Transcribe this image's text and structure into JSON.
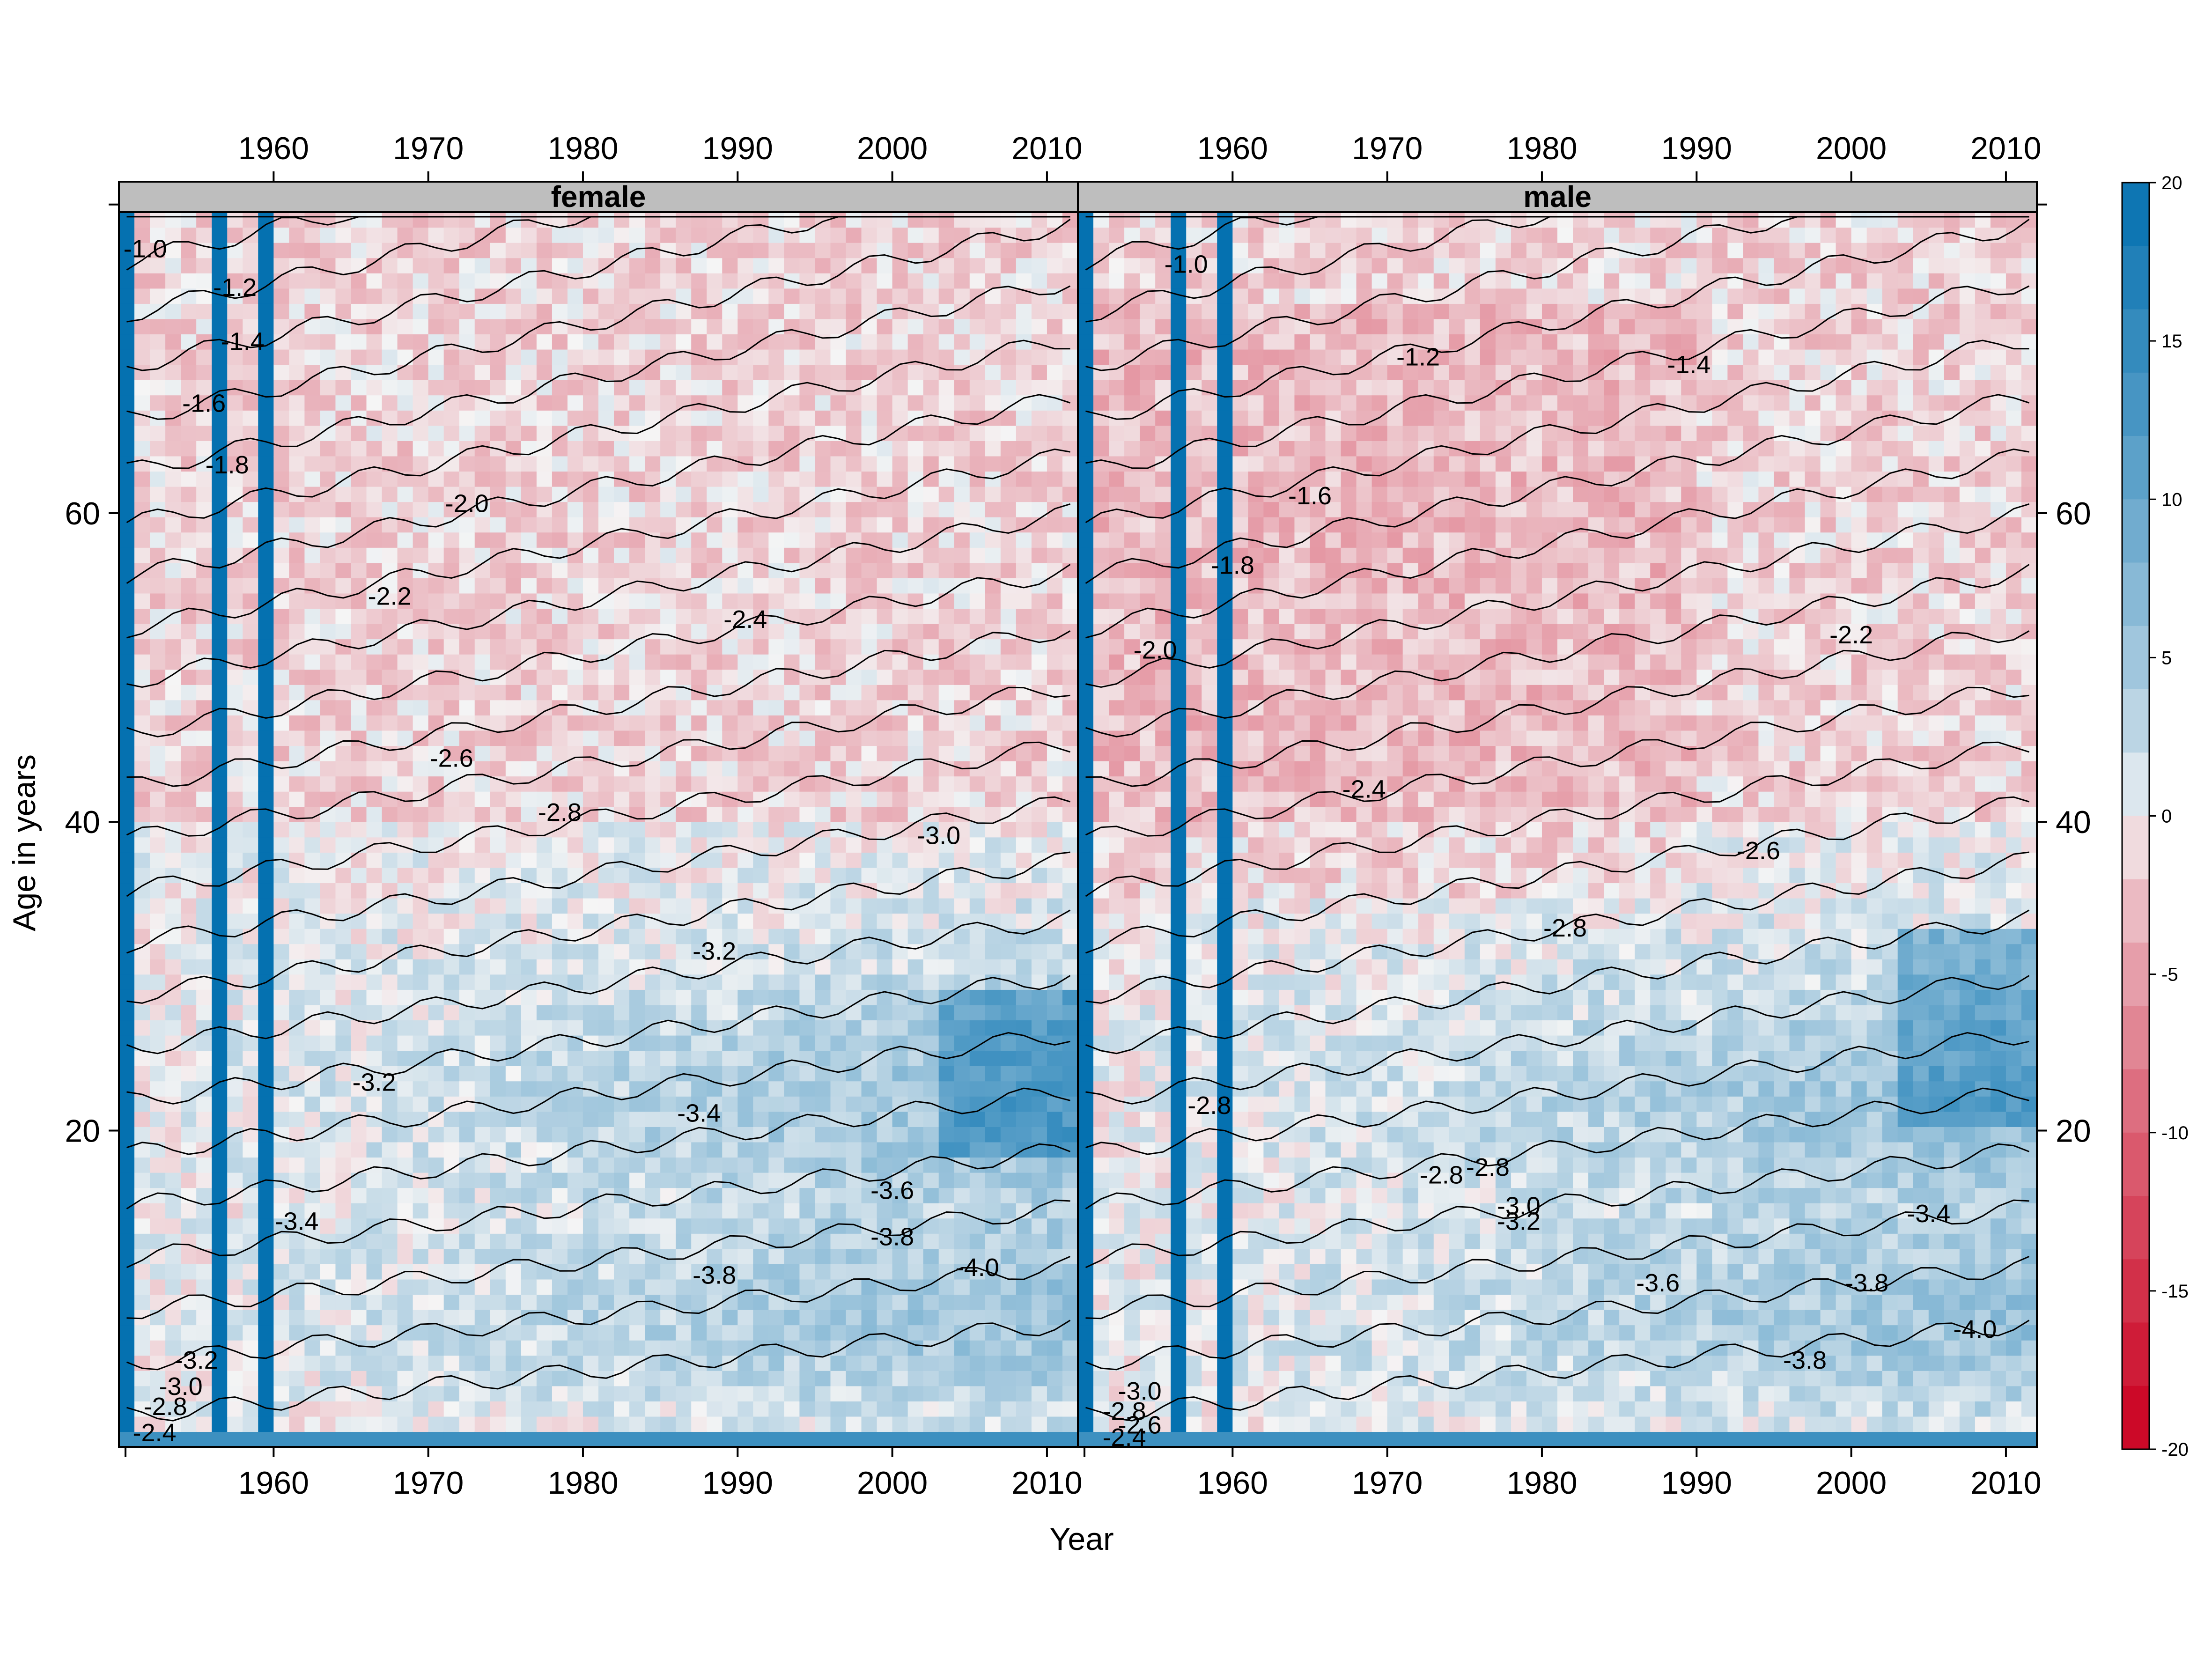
{
  "chart_data": {
    "type": "heatmap",
    "title": "",
    "xlabel": "Year",
    "ylabel": "Age in years",
    "xlim": [
      1950,
      2011
    ],
    "ylim": [
      0,
      80
    ],
    "x_ticks": [
      "1960",
      "1970",
      "1980",
      "1990",
      "2000",
      "2010"
    ],
    "y_ticks": [
      "20",
      "40",
      "60"
    ],
    "colorkey": {
      "range": [
        -20,
        20
      ],
      "ticks": [
        "20",
        "15",
        "10",
        "5",
        "0",
        "-5",
        "-10",
        "-15",
        "-20"
      ],
      "low_color": "#CA0020",
      "mid_color": "#F5F5F5",
      "high_color": "#0571B0"
    },
    "strip_color": "#BEBEBE",
    "panels": [
      {
        "name": "female",
        "highlight_years": [
          1950,
          1956,
          1959
        ],
        "contours": [
          {
            "label": "-1.0",
            "x": 1951.2,
            "y": 77.5
          },
          {
            "label": "-1.2",
            "x": 1957,
            "y": 75
          },
          {
            "label": "-1.4",
            "x": 1957.5,
            "y": 71.5
          },
          {
            "label": "-1.6",
            "x": 1955,
            "y": 67.5
          },
          {
            "label": "-1.8",
            "x": 1956.5,
            "y": 63.5
          },
          {
            "label": "-2.0",
            "x": 1972,
            "y": 61
          },
          {
            "label": "-2.2",
            "x": 1967,
            "y": 55
          },
          {
            "label": "-2.4",
            "x": 1990,
            "y": 53.5
          },
          {
            "label": "-2.6",
            "x": 1971,
            "y": 44.5
          },
          {
            "label": "-2.8",
            "x": 1978,
            "y": 41
          },
          {
            "label": "-3.0",
            "x": 2002.5,
            "y": 39.5
          },
          {
            "label": "-3.2",
            "x": 1988,
            "y": 32
          },
          {
            "label": "-3.2",
            "x": 1966,
            "y": 23.5
          },
          {
            "label": "-3.4",
            "x": 1987,
            "y": 21.5
          },
          {
            "label": "-3.4",
            "x": 1961,
            "y": 14.5
          },
          {
            "label": "-3.6",
            "x": 1999.5,
            "y": 16.5
          },
          {
            "label": "-3.8",
            "x": 1999.5,
            "y": 13.5
          },
          {
            "label": "-3.8",
            "x": 1988,
            "y": 11
          },
          {
            "label": "-4.0",
            "x": 2005,
            "y": 11.5
          },
          {
            "label": "-3.2",
            "x": 1954.5,
            "y": 5.5
          },
          {
            "label": "-3.0",
            "x": 1953.5,
            "y": 3.8
          },
          {
            "label": "-2.8",
            "x": 1952.5,
            "y": 2.5
          },
          {
            "label": "-2.4",
            "x": 1951.8,
            "y": 0.8
          }
        ]
      },
      {
        "name": "male",
        "highlight_years": [
          1950,
          1956,
          1959
        ],
        "contours": [
          {
            "label": "-1.0",
            "x": 1956.5,
            "y": 76.5
          },
          {
            "label": "-1.2",
            "x": 1971.5,
            "y": 70.5
          },
          {
            "label": "-1.4",
            "x": 1989,
            "y": 70
          },
          {
            "label": "-1.6",
            "x": 1964.5,
            "y": 61.5
          },
          {
            "label": "-1.8",
            "x": 1959.5,
            "y": 57
          },
          {
            "label": "-2.0",
            "x": 1954.5,
            "y": 51.5
          },
          {
            "label": "-2.2",
            "x": 1999.5,
            "y": 52.5
          },
          {
            "label": "-2.4",
            "x": 1968,
            "y": 42.5
          },
          {
            "label": "-2.6",
            "x": 1993.5,
            "y": 38.5
          },
          {
            "label": "-2.8",
            "x": 1981,
            "y": 33.5
          },
          {
            "label": "-2.8",
            "x": 1958,
            "y": 22
          },
          {
            "label": "-2.8",
            "x": 1973,
            "y": 17.5
          },
          {
            "label": "-2.8",
            "x": 1976,
            "y": 18
          },
          {
            "label": "-3.0",
            "x": 1978,
            "y": 15.5
          },
          {
            "label": "-3.2",
            "x": 1978,
            "y": 14.5
          },
          {
            "label": "-3.4",
            "x": 2004.5,
            "y": 15
          },
          {
            "label": "-3.6",
            "x": 1987,
            "y": 10.5
          },
          {
            "label": "-3.8",
            "x": 2000.5,
            "y": 10.5
          },
          {
            "label": "-3.8",
            "x": 1996.5,
            "y": 5.5
          },
          {
            "label": "-4.0",
            "x": 2007.5,
            "y": 7.5
          },
          {
            "label": "-3.0",
            "x": 1953.5,
            "y": 3.5
          },
          {
            "label": "-2.8",
            "x": 1952.5,
            "y": 2.2
          },
          {
            "label": "-2.6",
            "x": 1953.5,
            "y": 1.3
          },
          {
            "label": "-2.4",
            "x": 1952.5,
            "y": 0.5
          }
        ]
      }
    ]
  }
}
